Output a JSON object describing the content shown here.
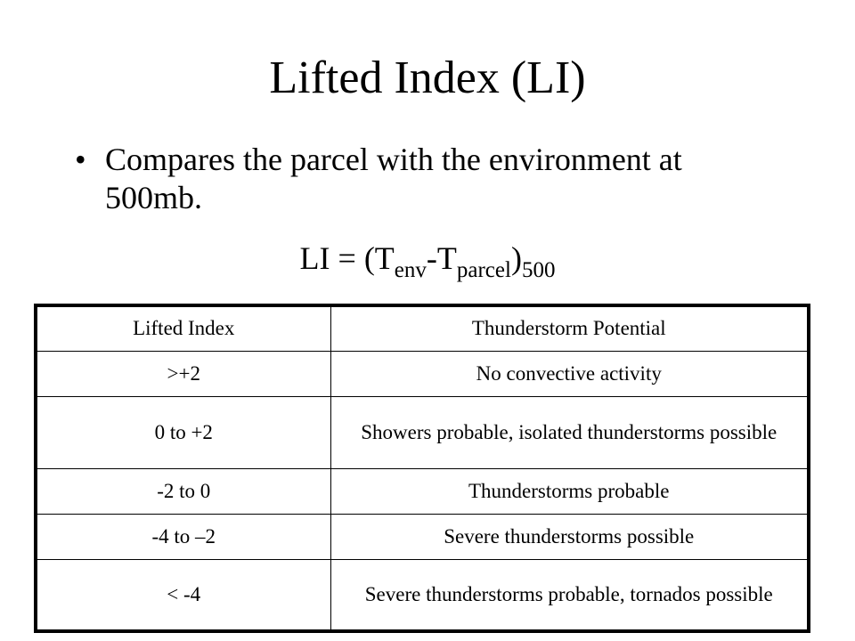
{
  "slide": {
    "title": "Lifted Index (LI)",
    "bullet_char": "•",
    "bullet_text": "Compares the parcel with the environment at 500mb.",
    "formula": {
      "prefix": "LI = (T",
      "sub_env": "env",
      "minus": "-T",
      "sub_parcel": "parcel",
      "close": ")",
      "sub_level": "500"
    }
  },
  "table": {
    "headers": [
      "Lifted Index",
      "Thunderstorm Potential"
    ],
    "rows": [
      {
        "index": ">+2",
        "potential": "No convective activity"
      },
      {
        "index": "0 to +2",
        "potential": "Showers probable, isolated thunderstorms possible"
      },
      {
        "index": "-2 to 0",
        "potential": "Thunderstorms probable"
      },
      {
        "index": "-4 to –2",
        "potential": "Severe thunderstorms possible"
      },
      {
        "index": "< -4",
        "potential": "Severe thunderstorms probable, tornados possible"
      }
    ]
  }
}
